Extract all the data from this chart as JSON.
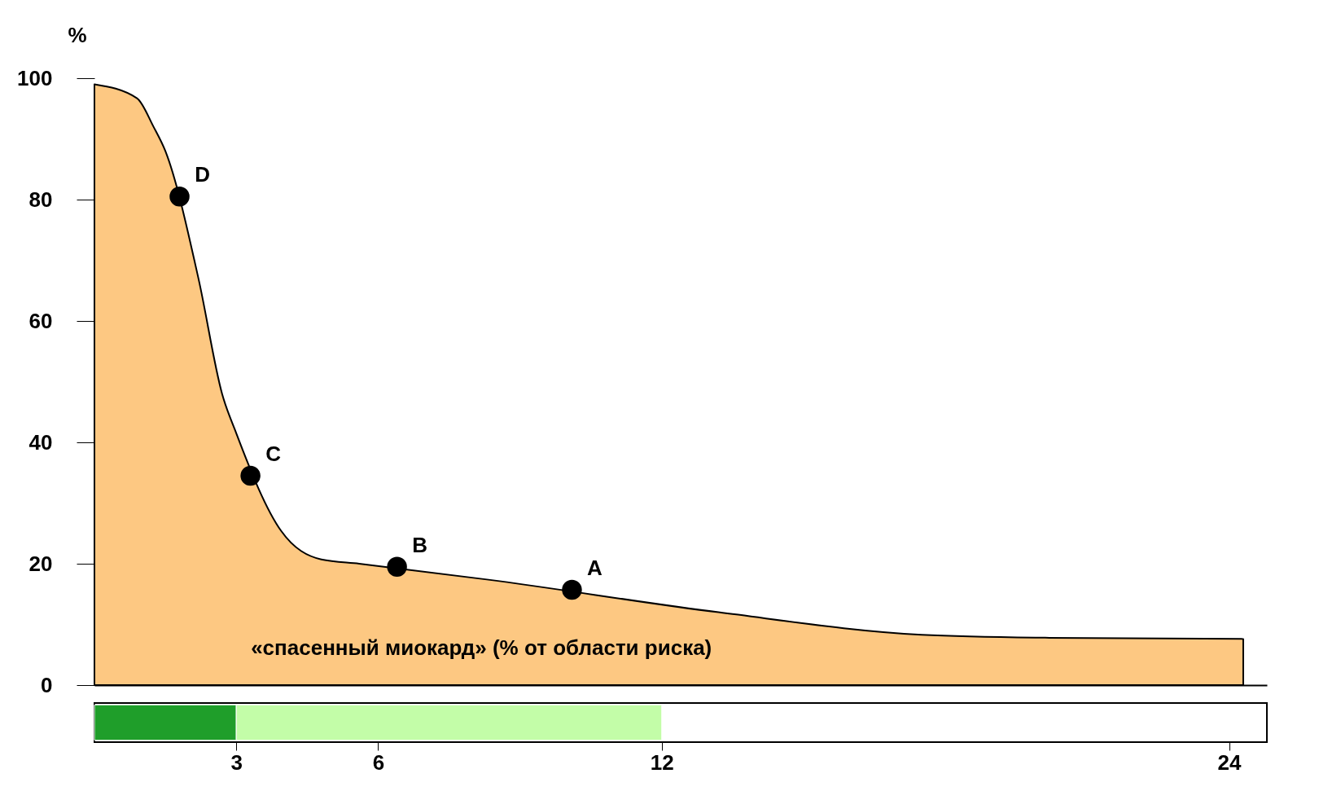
{
  "chart_data": [
    {
      "type": "area",
      "ylabel": "%",
      "x": [
        0,
        0.9,
        1.25,
        1.5,
        2.2,
        2.7,
        3.0,
        3.95,
        4.8,
        5.6,
        8.3,
        13.2,
        17.5,
        20.2,
        24.3
      ],
      "series": [
        {
          "color": "#fdc882",
          "values": [
            99,
            96.7,
            92,
            88,
            67,
            48,
            41.5,
            25.4,
            20.7,
            20,
            17.4,
            12,
            8.3,
            7.8,
            7.6
          ]
        },
        {
          "type": "scatter",
          "color": "#000000",
          "marker": "circle",
          "x": [
            1.8,
            3.3,
            6.4,
            10.1
          ],
          "values": [
            80.5,
            34.5,
            19.5,
            15.7
          ]
        }
      ],
      "annotations": [
        {
          "text": "D",
          "x": 1.8,
          "y": 80.5
        },
        {
          "text": "C",
          "x": 3.3,
          "y": 34.5
        },
        {
          "text": "B",
          "x": 6.4,
          "y": 19.5
        },
        {
          "text": "A",
          "x": 10.1,
          "y": 15.7
        },
        "«спасенный миокард» (% от области риска)"
      ],
      "xlim": [
        0,
        24.8
      ],
      "ylim": [
        0,
        100
      ],
      "yticks": [
        0,
        20,
        40,
        60,
        80,
        100
      ],
      "tick_labels": "y",
      "grid": false
    },
    {
      "type": "bar",
      "orientation": "horizontal",
      "stacked": true,
      "categories": [
        null
      ],
      "series": [
        {
          "color": "#1f9e2a",
          "values": [
            3
          ]
        },
        {
          "color": "#c3fda8",
          "values": [
            9
          ]
        }
      ],
      "xlim": [
        0,
        24.8
      ],
      "xticks": [
        3,
        6,
        12,
        24
      ],
      "tick_labels": "x",
      "grid": false
    }
  ]
}
